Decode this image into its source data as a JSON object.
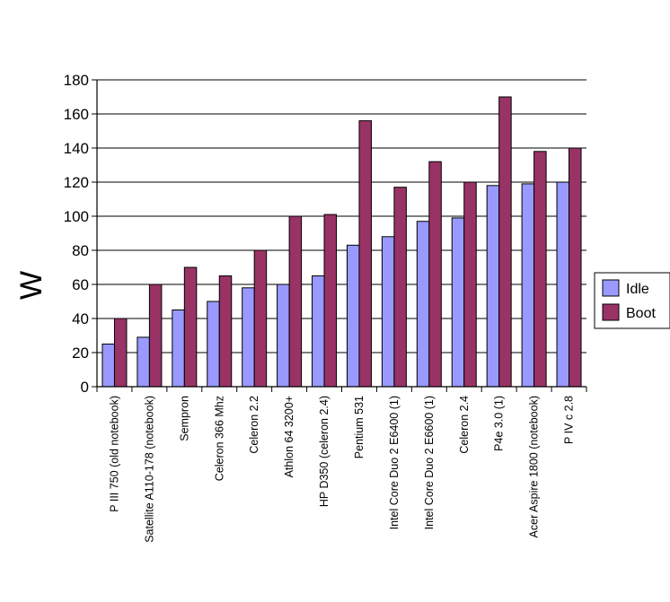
{
  "chart_data": {
    "type": "bar",
    "title": "",
    "xlabel": "",
    "ylabel": "W",
    "ylim": [
      0,
      180
    ],
    "yticks": [
      0,
      20,
      40,
      60,
      80,
      100,
      120,
      140,
      160,
      180
    ],
    "grid": true,
    "legend_position": "right",
    "categories": [
      "P III 750 (old notebook)",
      "Satellite A110-178 (notebook)",
      "Sempron",
      "Celeron 366 Mhz",
      "Celeron 2.2",
      "Athlon 64 3200+",
      "HP D350 (celeron 2.4)",
      "Pentium 531",
      "Intel Core Duo 2 E6400 (1)",
      "Intel Core Duo 2 E6600 (1)",
      "Celeron 2.4",
      "P4e 3.0 (1)",
      "Acer Aspire 1800 (notebook)",
      "P IV c 2.8"
    ],
    "series": [
      {
        "name": "Idle",
        "color": "#9999FF",
        "values": [
          25,
          29,
          45,
          50,
          58,
          60,
          65,
          83,
          88,
          97,
          99,
          118,
          119,
          120
        ]
      },
      {
        "name": "Boot",
        "color": "#993366",
        "values": [
          40,
          60,
          70,
          65,
          80,
          100,
          101,
          156,
          117,
          132,
          120,
          170,
          138,
          140
        ]
      }
    ]
  }
}
